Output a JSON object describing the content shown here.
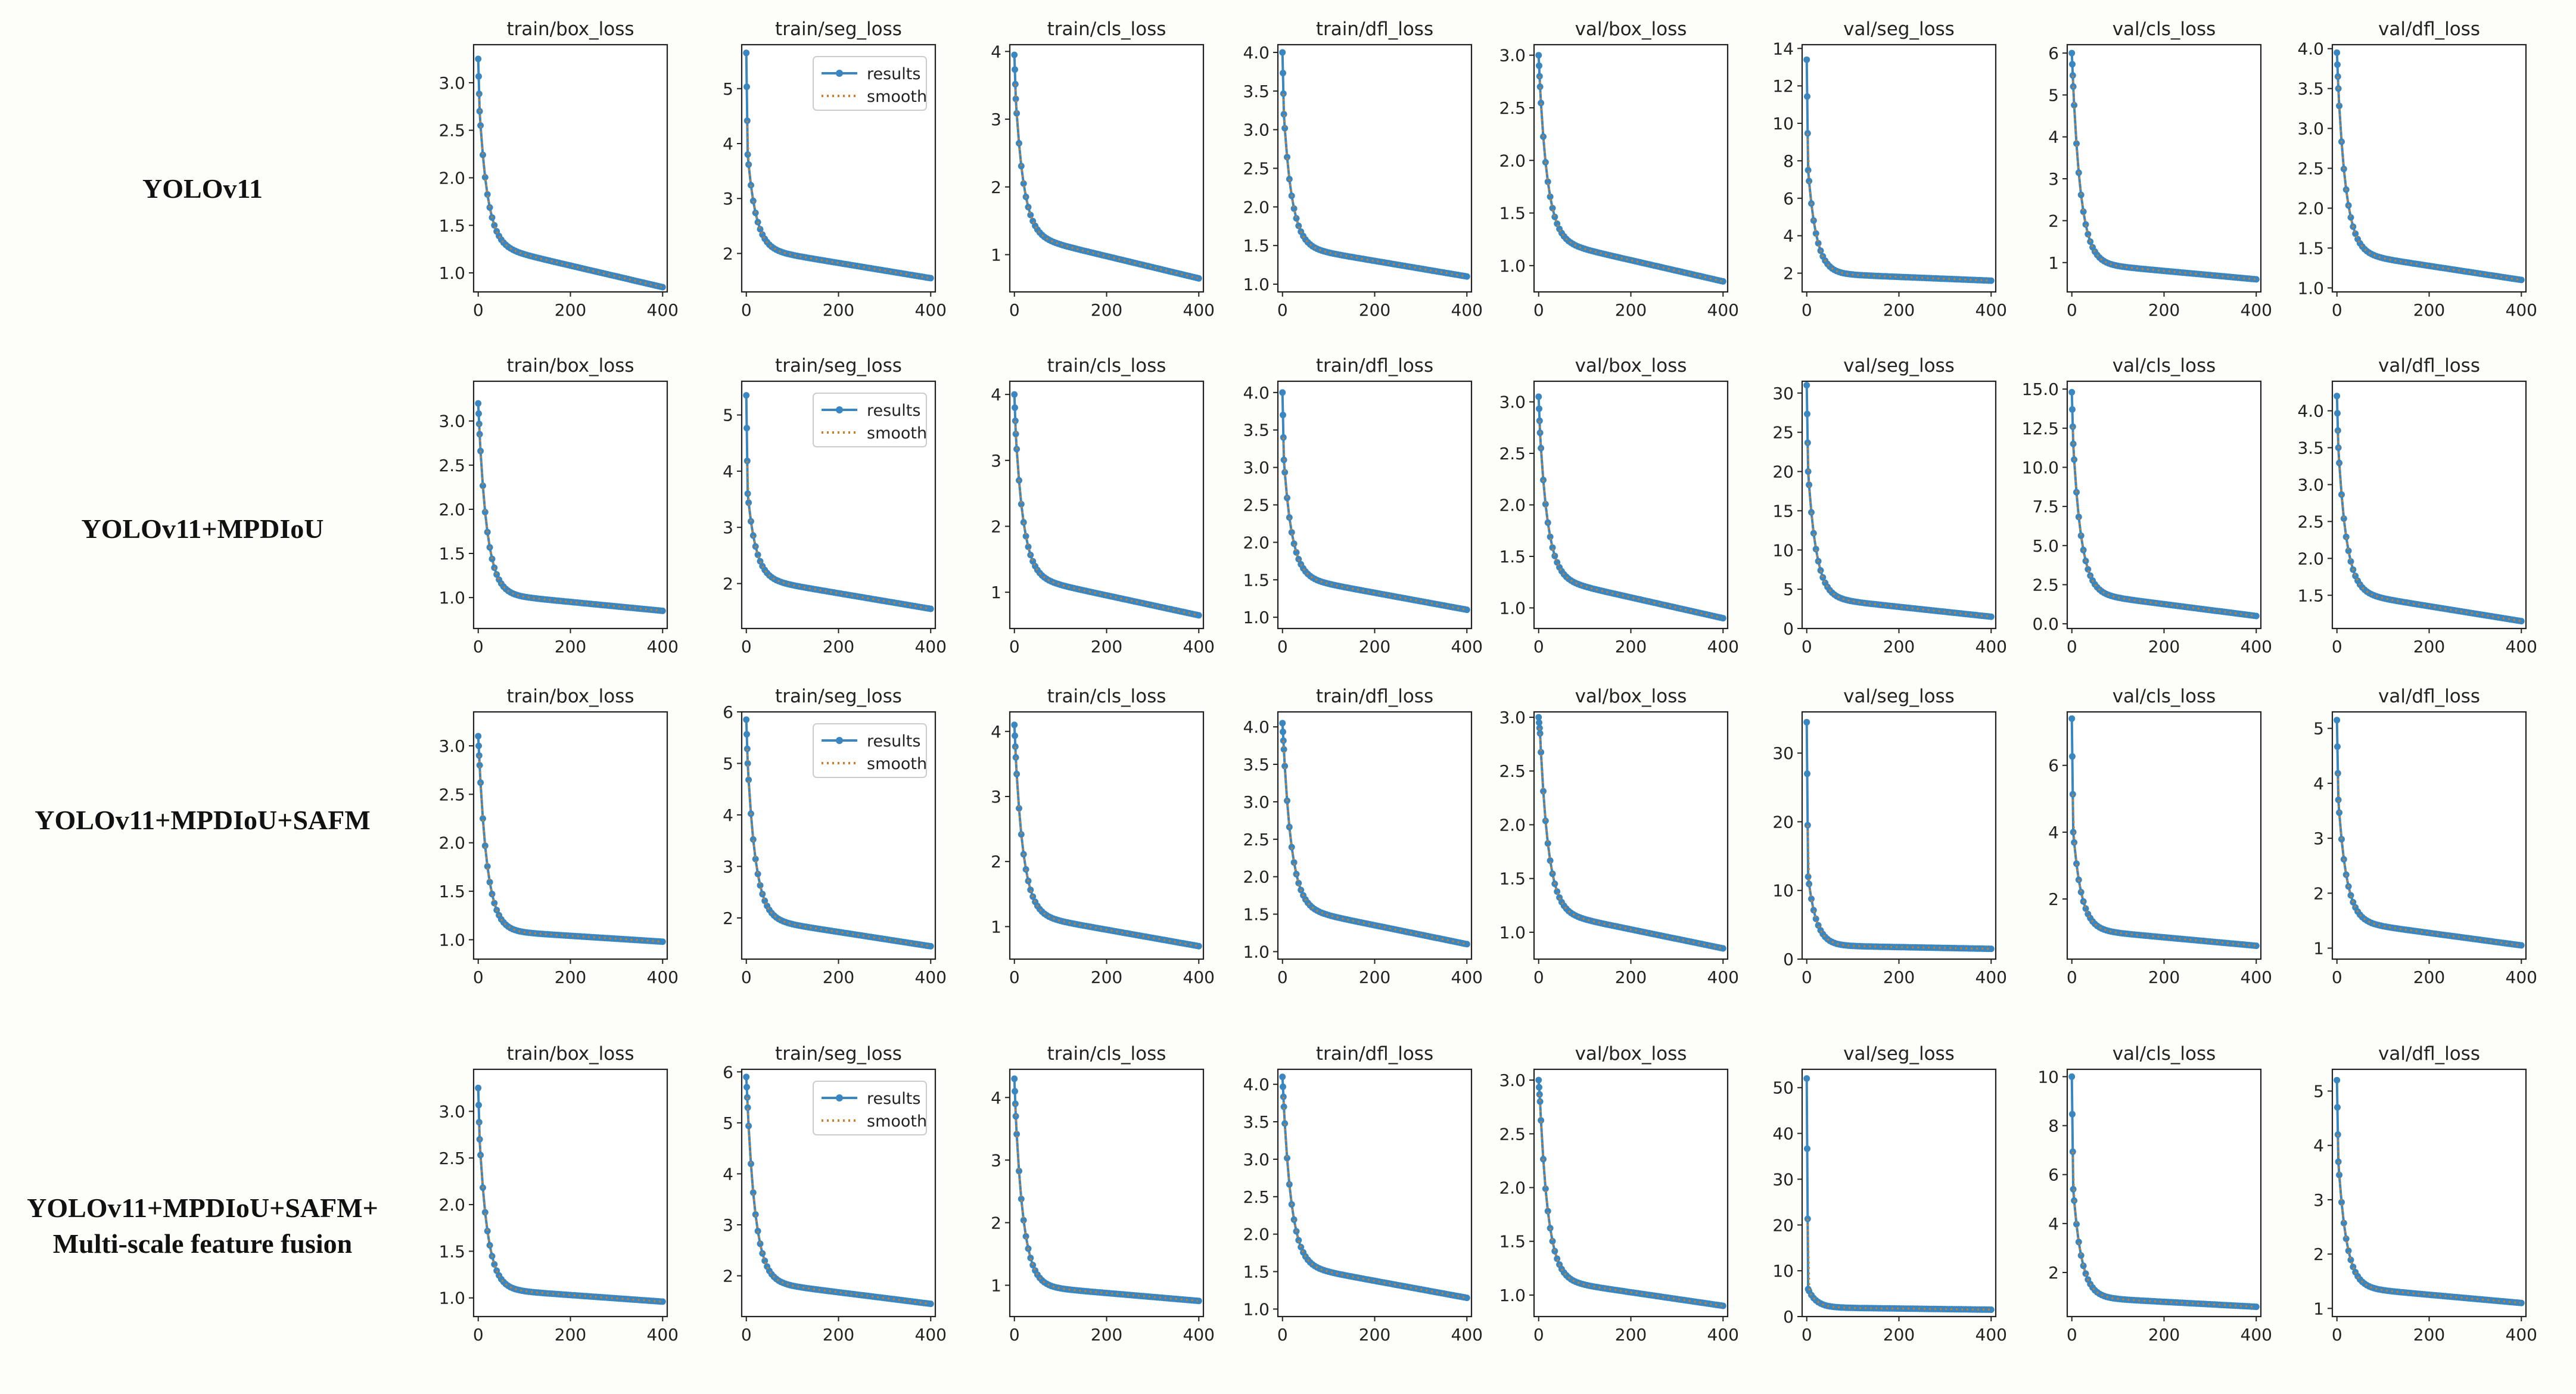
{
  "legend": {
    "results": "results",
    "smooth": "smooth"
  },
  "colors": {
    "results": "#3a86c0",
    "smooth": "#d07d24",
    "axis": "#222222",
    "text": "#222222",
    "background": "#fdfdf9"
  },
  "models": [
    {
      "name": "YOLOv11"
    },
    {
      "name": "YOLOv11+MPDIoU"
    },
    {
      "name": "YOLOv11+MPDIoU+SAFM"
    },
    {
      "name": "YOLOv11+MPDIoU+SAFM+",
      "name2": "Multi-scale feature fusion"
    }
  ],
  "chart_data": [
    {
      "row": 0,
      "title": "train/box_loss",
      "type": "line",
      "xlim": [
        -10,
        410
      ],
      "ylim": [
        0.8,
        3.4
      ],
      "xticks": [
        0,
        200,
        400
      ],
      "yticks": [
        1.0,
        1.5,
        2.0,
        2.5,
        3.0
      ],
      "start": 3.25,
      "second": 2.7,
      "end": 0.85,
      "mid": 1.3,
      "legend": false
    },
    {
      "row": 0,
      "title": "train/seg_loss",
      "type": "line",
      "xlim": [
        -10,
        410
      ],
      "ylim": [
        1.3,
        5.8
      ],
      "xticks": [
        0,
        200,
        400
      ],
      "yticks": [
        2,
        3,
        4,
        5
      ],
      "start": 5.65,
      "second": 3.8,
      "end": 1.55,
      "mid": 2.1,
      "legend": true
    },
    {
      "row": 0,
      "title": "train/cls_loss",
      "type": "line",
      "xlim": [
        -10,
        410
      ],
      "ylim": [
        0.45,
        4.1
      ],
      "xticks": [
        0,
        200,
        400
      ],
      "yticks": [
        1,
        2,
        3,
        4
      ],
      "start": 3.95,
      "second": 3.3,
      "end": 0.65,
      "mid": 1.3,
      "legend": false
    },
    {
      "row": 0,
      "title": "train/dfl_loss",
      "type": "line",
      "xlim": [
        -10,
        410
      ],
      "ylim": [
        0.9,
        4.1
      ],
      "xticks": [
        0,
        200,
        400
      ],
      "yticks": [
        1.0,
        1.5,
        2.0,
        2.5,
        3.0,
        3.5,
        4.0
      ],
      "start": 4.0,
      "second": 3.2,
      "end": 1.1,
      "mid": 1.5,
      "legend": false
    },
    {
      "row": 0,
      "title": "val/box_loss",
      "type": "line",
      "xlim": [
        -10,
        410
      ],
      "ylim": [
        0.75,
        3.1
      ],
      "xticks": [
        0,
        200,
        400
      ],
      "yticks": [
        1.0,
        1.5,
        2.0,
        2.5,
        3.0
      ],
      "start": 3.0,
      "second": 2.7,
      "end": 0.85,
      "mid": 1.25,
      "legend": false
    },
    {
      "row": 0,
      "title": "val/seg_loss",
      "type": "line",
      "xlim": [
        -10,
        410
      ],
      "ylim": [
        1.0,
        14.2
      ],
      "xticks": [
        0,
        200,
        400
      ],
      "yticks": [
        2,
        4,
        6,
        8,
        10,
        12,
        14
      ],
      "start": 13.4,
      "second": 7.5,
      "end": 1.6,
      "mid": 2.0,
      "legend": false
    },
    {
      "row": 0,
      "title": "val/cls_loss",
      "type": "line",
      "xlim": [
        -10,
        410
      ],
      "ylim": [
        0.3,
        6.2
      ],
      "xticks": [
        0,
        200,
        400
      ],
      "yticks": [
        1,
        2,
        3,
        4,
        5,
        6
      ],
      "start": 6.0,
      "second": 5.2,
      "end": 0.6,
      "mid": 1.0,
      "legend": false
    },
    {
      "row": 0,
      "title": "val/dfl_loss",
      "type": "line",
      "xlim": [
        -10,
        410
      ],
      "ylim": [
        0.95,
        4.05
      ],
      "xticks": [
        0,
        200,
        400
      ],
      "yticks": [
        1.0,
        1.5,
        2.0,
        2.5,
        3.0,
        3.5,
        4.0
      ],
      "start": 3.95,
      "second": 3.5,
      "end": 1.1,
      "mid": 1.45,
      "legend": false
    },
    {
      "row": 1,
      "title": "train/box_loss",
      "type": "line",
      "xlim": [
        -10,
        410
      ],
      "ylim": [
        0.65,
        3.45
      ],
      "xticks": [
        0,
        200,
        400
      ],
      "yticks": [
        1.0,
        1.5,
        2.0,
        2.5,
        3.0
      ],
      "start": 3.2,
      "second": 2.85,
      "end": 0.85,
      "mid": 1.05,
      "legend": false
    },
    {
      "row": 1,
      "title": "train/seg_loss",
      "type": "line",
      "xlim": [
        -10,
        410
      ],
      "ylim": [
        1.2,
        5.6
      ],
      "xticks": [
        0,
        200,
        400
      ],
      "yticks": [
        2,
        3,
        4,
        5
      ],
      "start": 5.35,
      "second": 3.6,
      "end": 1.55,
      "mid": 2.1,
      "legend": true
    },
    {
      "row": 1,
      "title": "train/cls_loss",
      "type": "line",
      "xlim": [
        -10,
        410
      ],
      "ylim": [
        0.45,
        4.2
      ],
      "xticks": [
        0,
        200,
        400
      ],
      "yticks": [
        1,
        2,
        3,
        4
      ],
      "start": 4.0,
      "second": 3.4,
      "end": 0.65,
      "mid": 1.25,
      "legend": false
    },
    {
      "row": 1,
      "title": "train/dfl_loss",
      "type": "line",
      "xlim": [
        -10,
        410
      ],
      "ylim": [
        0.85,
        4.15
      ],
      "xticks": [
        0,
        200,
        400
      ],
      "yticks": [
        1.0,
        1.5,
        2.0,
        2.5,
        3.0,
        3.5,
        4.0
      ],
      "start": 4.0,
      "second": 3.1,
      "end": 1.1,
      "mid": 1.55,
      "legend": false
    },
    {
      "row": 1,
      "title": "val/box_loss",
      "type": "line",
      "xlim": [
        -10,
        410
      ],
      "ylim": [
        0.8,
        3.2
      ],
      "xticks": [
        0,
        200,
        400
      ],
      "yticks": [
        1.0,
        1.5,
        2.0,
        2.5,
        3.0
      ],
      "start": 3.05,
      "second": 2.7,
      "end": 0.9,
      "mid": 1.3,
      "legend": false
    },
    {
      "row": 1,
      "title": "val/seg_loss",
      "type": "line",
      "xlim": [
        -10,
        410
      ],
      "ylim": [
        0,
        31.5
      ],
      "xticks": [
        0,
        200,
        400
      ],
      "yticks": [
        0,
        5,
        10,
        15,
        20,
        25,
        30
      ],
      "start": 31,
      "second": 20,
      "end": 1.5,
      "mid": 4.0,
      "legend": false
    },
    {
      "row": 1,
      "title": "val/cls_loss",
      "type": "line",
      "xlim": [
        -10,
        410
      ],
      "ylim": [
        -0.3,
        15.5
      ],
      "xticks": [
        0,
        200,
        400
      ],
      "yticks": [
        0.0,
        2.5,
        5.0,
        7.5,
        10.0,
        12.5,
        15.0
      ],
      "start": 14.8,
      "second": 11.5,
      "end": 0.5,
      "mid": 2.0,
      "legend": false
    },
    {
      "row": 1,
      "title": "val/dfl_loss",
      "type": "line",
      "xlim": [
        -10,
        410
      ],
      "ylim": [
        1.05,
        4.4
      ],
      "xticks": [
        0,
        200,
        400
      ],
      "yticks": [
        1.5,
        2.0,
        2.5,
        3.0,
        3.5,
        4.0
      ],
      "start": 4.2,
      "second": 3.5,
      "end": 1.15,
      "mid": 1.55,
      "legend": false
    },
    {
      "row": 2,
      "title": "train/box_loss",
      "type": "line",
      "xlim": [
        -10,
        410
      ],
      "ylim": [
        0.8,
        3.35
      ],
      "xticks": [
        0,
        200,
        400
      ],
      "yticks": [
        1.0,
        1.5,
        2.0,
        2.5,
        3.0
      ],
      "start": 3.1,
      "second": 2.8,
      "end": 0.98,
      "mid": 1.1,
      "legend": false
    },
    {
      "row": 2,
      "title": "train/seg_loss",
      "type": "line",
      "xlim": [
        -10,
        410
      ],
      "ylim": [
        1.2,
        6.0
      ],
      "xticks": [
        0,
        200,
        400
      ],
      "yticks": [
        2,
        3,
        4,
        5,
        6
      ],
      "start": 5.85,
      "second": 5.0,
      "end": 1.45,
      "mid": 2.0,
      "legend": true
    },
    {
      "row": 2,
      "title": "train/cls_loss",
      "type": "line",
      "xlim": [
        -10,
        410
      ],
      "ylim": [
        0.5,
        4.3
      ],
      "xticks": [
        0,
        200,
        400
      ],
      "yticks": [
        1,
        2,
        3,
        4
      ],
      "start": 4.1,
      "second": 3.6,
      "end": 0.7,
      "mid": 1.2,
      "legend": false
    },
    {
      "row": 2,
      "title": "train/dfl_loss",
      "type": "line",
      "xlim": [
        -10,
        410
      ],
      "ylim": [
        0.9,
        4.2
      ],
      "xticks": [
        0,
        200,
        400
      ],
      "yticks": [
        1.0,
        1.5,
        2.0,
        2.5,
        3.0,
        3.5,
        4.0
      ],
      "start": 4.05,
      "second": 3.7,
      "end": 1.1,
      "mid": 1.6,
      "legend": false
    },
    {
      "row": 2,
      "title": "val/box_loss",
      "type": "line",
      "xlim": [
        -10,
        410
      ],
      "ylim": [
        0.75,
        3.05
      ],
      "xticks": [
        0,
        200,
        400
      ],
      "yticks": [
        1.0,
        1.5,
        2.0,
        2.5,
        3.0
      ],
      "start": 3.0,
      "second": 2.85,
      "end": 0.85,
      "mid": 1.2,
      "legend": false
    },
    {
      "row": 2,
      "title": "val/seg_loss",
      "type": "line",
      "xlim": [
        -10,
        410
      ],
      "ylim": [
        0,
        36
      ],
      "xticks": [
        0,
        200,
        400
      ],
      "yticks": [
        0,
        10,
        20,
        30
      ],
      "start": 34.5,
      "second": 12,
      "end": 1.5,
      "mid": 2.0,
      "legend": false
    },
    {
      "row": 2,
      "title": "val/cls_loss",
      "type": "line",
      "xlim": [
        -10,
        410
      ],
      "ylim": [
        0.2,
        7.6
      ],
      "xticks": [
        0,
        200,
        400
      ],
      "yticks": [
        2,
        4,
        6
      ],
      "start": 7.4,
      "second": 4.0,
      "end": 0.6,
      "mid": 1.1,
      "legend": false
    },
    {
      "row": 2,
      "title": "val/dfl_loss",
      "type": "line",
      "xlim": [
        -10,
        410
      ],
      "ylim": [
        0.8,
        5.3
      ],
      "xticks": [
        0,
        200,
        400
      ],
      "yticks": [
        1,
        2,
        3,
        4,
        5
      ],
      "start": 5.15,
      "second": 3.7,
      "end": 1.05,
      "mid": 1.5,
      "legend": false
    },
    {
      "row": 3,
      "title": "train/box_loss",
      "type": "line",
      "xlim": [
        -10,
        410
      ],
      "ylim": [
        0.8,
        3.45
      ],
      "xticks": [
        0,
        200,
        400
      ],
      "yticks": [
        1.0,
        1.5,
        2.0,
        2.5,
        3.0
      ],
      "start": 3.25,
      "second": 2.7,
      "end": 0.96,
      "mid": 1.1,
      "legend": false
    },
    {
      "row": 3,
      "title": "train/seg_loss",
      "type": "line",
      "xlim": [
        -10,
        410
      ],
      "ylim": [
        1.2,
        6.05
      ],
      "xticks": [
        0,
        200,
        400
      ],
      "yticks": [
        2,
        3,
        4,
        5,
        6
      ],
      "start": 5.9,
      "second": 5.3,
      "end": 1.45,
      "mid": 1.9,
      "legend": true
    },
    {
      "row": 3,
      "title": "train/cls_loss",
      "type": "line",
      "xlim": [
        -10,
        410
      ],
      "ylim": [
        0.5,
        4.45
      ],
      "xticks": [
        0,
        200,
        400
      ],
      "yticks": [
        1,
        2,
        3,
        4
      ],
      "start": 4.3,
      "second": 3.7,
      "end": 0.75,
      "mid": 1.0,
      "legend": false
    },
    {
      "row": 3,
      "title": "train/dfl_loss",
      "type": "line",
      "xlim": [
        -10,
        410
      ],
      "ylim": [
        0.9,
        4.2
      ],
      "xticks": [
        0,
        200,
        400
      ],
      "yticks": [
        1.0,
        1.5,
        2.0,
        2.5,
        3.0,
        3.5,
        4.0
      ],
      "start": 4.1,
      "second": 3.7,
      "end": 1.15,
      "mid": 1.6,
      "legend": false
    },
    {
      "row": 3,
      "title": "val/box_loss",
      "type": "line",
      "xlim": [
        -10,
        410
      ],
      "ylim": [
        0.8,
        3.1
      ],
      "xticks": [
        0,
        200,
        400
      ],
      "yticks": [
        1.0,
        1.5,
        2.0,
        2.5,
        3.0
      ],
      "start": 3.0,
      "second": 2.8,
      "end": 0.9,
      "mid": 1.15,
      "legend": false
    },
    {
      "row": 3,
      "title": "val/seg_loss",
      "type": "line",
      "xlim": [
        -10,
        410
      ],
      "ylim": [
        0,
        54
      ],
      "xticks": [
        0,
        200,
        400
      ],
      "yticks": [
        0,
        10,
        20,
        30,
        40,
        50
      ],
      "start": 52,
      "second": 6,
      "end": 1.5,
      "mid": 2.0,
      "legend": false
    },
    {
      "row": 3,
      "title": "val/cls_loss",
      "type": "line",
      "xlim": [
        -10,
        410
      ],
      "ylim": [
        0.2,
        10.3
      ],
      "xticks": [
        0,
        200,
        400
      ],
      "yticks": [
        2,
        4,
        6,
        8,
        10
      ],
      "start": 10.0,
      "second": 5.4,
      "end": 0.6,
      "mid": 1.0,
      "legend": false
    },
    {
      "row": 3,
      "title": "val/dfl_loss",
      "type": "line",
      "xlim": [
        -10,
        410
      ],
      "ylim": [
        0.85,
        5.4
      ],
      "xticks": [
        0,
        200,
        400
      ],
      "yticks": [
        1,
        2,
        3,
        4,
        5
      ],
      "start": 5.2,
      "second": 3.7,
      "end": 1.1,
      "mid": 1.4,
      "legend": false
    }
  ]
}
